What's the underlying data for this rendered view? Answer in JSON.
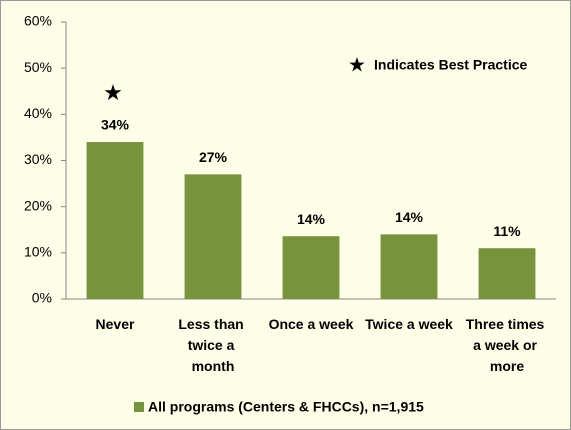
{
  "chart_data": {
    "type": "bar",
    "categories": [
      "Never",
      "Less than twice a month",
      "Once a week",
      "Twice a week",
      "Three times a week or more"
    ],
    "series": [
      {
        "name": "All programs (Centers & FHCCs), n=1,915",
        "color": "#77933c",
        "values": [
          34,
          27,
          13.6,
          14,
          11
        ],
        "value_labels": [
          "34%",
          "27%",
          "14%",
          "14%",
          "11%"
        ]
      }
    ],
    "ylim": [
      0,
      60
    ],
    "yticks": [
      {
        "value": 0,
        "label": "0%"
      },
      {
        "value": 10,
        "label": "10%"
      },
      {
        "value": 20,
        "label": "20%"
      },
      {
        "value": 30,
        "label": "30%"
      },
      {
        "value": 40,
        "label": "40%"
      },
      {
        "value": 50,
        "label": "50%"
      },
      {
        "value": 60,
        "label": "60%"
      }
    ],
    "annotation": "Indicates Best Practice",
    "legend": "bottom"
  }
}
